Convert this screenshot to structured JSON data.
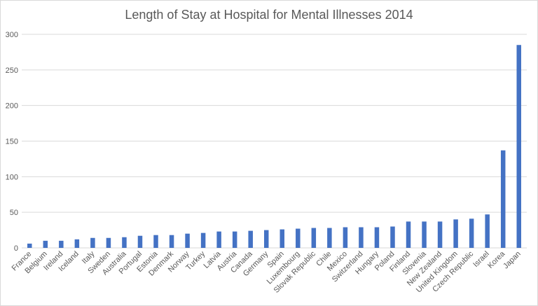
{
  "chart_data": {
    "type": "bar",
    "title": "Length of Stay at Hospital for Mental Illnesses 2014",
    "xlabel": "",
    "ylabel": "",
    "ylim": [
      0,
      300
    ],
    "yticks": [
      0,
      50,
      100,
      150,
      200,
      250,
      300
    ],
    "grid": true,
    "legend": "none",
    "bar_color": "#4472c4",
    "grid_color": "#d9d9d9",
    "categories": [
      "France",
      "Belgium",
      "Ireland",
      "Iceland",
      "Italy",
      "Sweden",
      "Australia",
      "Portugal",
      "Estonia",
      "Denmark",
      "Norway",
      "Turkey",
      "Latvia",
      "Austria",
      "Canada",
      "Germany",
      "Spain",
      "Luxembourg",
      "Slovak Republic",
      "Chile",
      "Mexico",
      "Switzerland",
      "Hungary",
      "Poland",
      "Finland",
      "Slovenia",
      "New Zealand",
      "United Kingdom",
      "Czech Republic",
      "Israel",
      "Korea",
      "Japan"
    ],
    "values": [
      6,
      10,
      10,
      12,
      14,
      14,
      15,
      17,
      18,
      18,
      20,
      21,
      23,
      23,
      24,
      25,
      26,
      27,
      28,
      28,
      29,
      29,
      29,
      30,
      37,
      37,
      37,
      40,
      41,
      47,
      137,
      285
    ]
  }
}
